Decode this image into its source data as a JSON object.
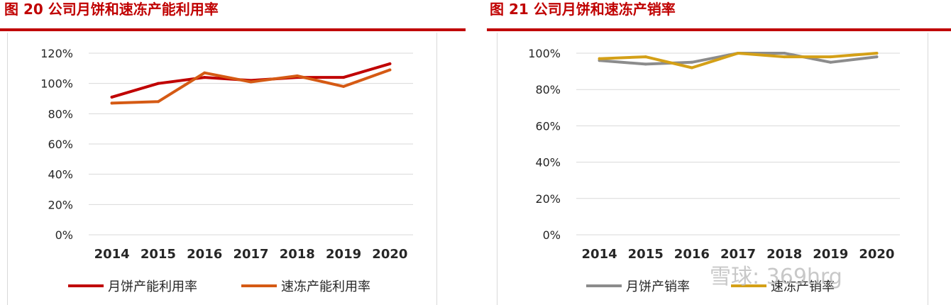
{
  "figures": [
    {
      "title": "图 20  公司月饼和速冻产能利用率"
    },
    {
      "title": "图 21  公司月饼和速冻产销率"
    }
  ],
  "watermark": "雪球: 369hrg",
  "chart_data": [
    {
      "type": "line",
      "title": "图 20  公司月饼和速冻产能利用率",
      "x": [
        "2014",
        "2015",
        "2016",
        "2017",
        "2018",
        "2019",
        "2020"
      ],
      "ylim": [
        0,
        120
      ],
      "yticks": [
        0,
        20,
        40,
        60,
        80,
        100,
        120
      ],
      "ytick_labels": [
        "0%",
        "20%",
        "40%",
        "60%",
        "80%",
        "100%",
        "120%"
      ],
      "grid": true,
      "legend": "bottom",
      "series": [
        {
          "name": "月饼产能利用率",
          "color": "#c00000",
          "values": [
            91,
            100,
            104,
            102,
            104,
            104,
            113
          ]
        },
        {
          "name": "速冻产能利用率",
          "color": "#d55a14",
          "values": [
            87,
            88,
            107,
            101,
            105,
            98,
            109
          ]
        }
      ]
    },
    {
      "type": "line",
      "title": "图 21  公司月饼和速冻产销率",
      "x": [
        "2014",
        "2015",
        "2016",
        "2017",
        "2018",
        "2019",
        "2020"
      ],
      "ylim": [
        0,
        100
      ],
      "yticks": [
        0,
        20,
        40,
        60,
        80,
        100
      ],
      "ytick_labels": [
        "0%",
        "20%",
        "40%",
        "60%",
        "80%",
        "100%"
      ],
      "grid": true,
      "legend": "bottom",
      "series": [
        {
          "name": "月饼产销率",
          "color": "#8c8c8c",
          "values": [
            96,
            94,
            95,
            100,
            100,
            95,
            98
          ]
        },
        {
          "name": "速冻产销率",
          "color": "#d4a017",
          "values": [
            97,
            98,
            92,
            100,
            98,
            98,
            100
          ]
        }
      ]
    }
  ]
}
